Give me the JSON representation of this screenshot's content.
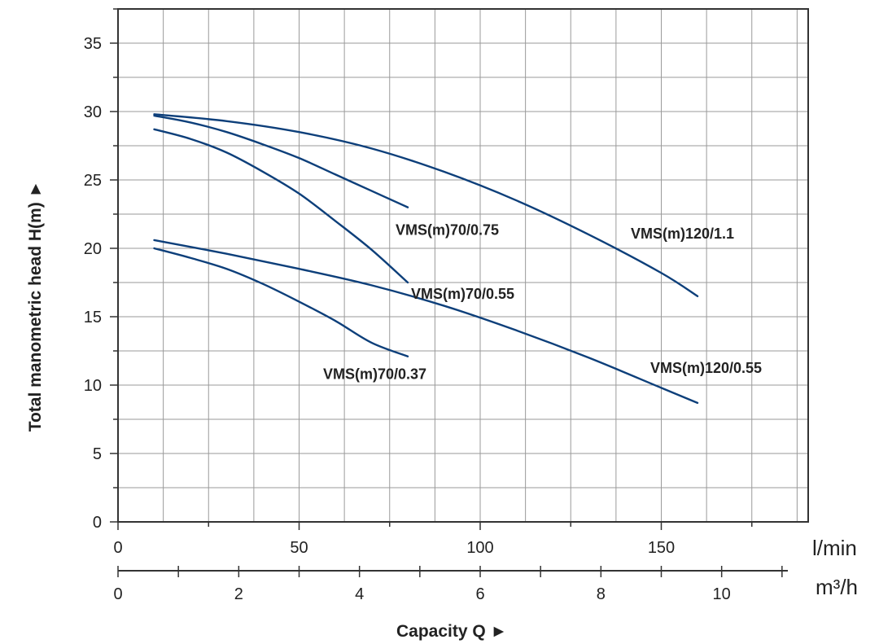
{
  "colors": {
    "curve": "#0d3f7a",
    "grid": "#9a9a9a",
    "axis": "#333333"
  },
  "chart_data": {
    "type": "line",
    "ylabel": "Total manometric head H(m) ►",
    "xlabel": "Capacity Q ►",
    "x_unit": "l/min",
    "x2_unit": "m³/h",
    "xlim": [
      0,
      190
    ],
    "ylim": [
      0,
      37
    ],
    "x_ticks": [
      0,
      50,
      100,
      150
    ],
    "x2_ticks": [
      0,
      2,
      4,
      6,
      8,
      10
    ],
    "y_ticks": [
      0,
      5,
      10,
      15,
      20,
      25,
      30,
      35
    ],
    "grid": true,
    "series": [
      {
        "name": "VMS(m)70/0.75",
        "x": [
          10,
          20,
          30,
          40,
          50,
          60,
          70,
          80
        ],
        "y": [
          29.7,
          29.2,
          28.5,
          27.6,
          26.6,
          25.4,
          24.2,
          23.0
        ]
      },
      {
        "name": "VMS(m)70/0.55",
        "x": [
          10,
          20,
          30,
          40,
          50,
          60,
          70,
          80
        ],
        "y": [
          28.7,
          28.0,
          27.0,
          25.6,
          24.0,
          22.0,
          19.9,
          17.5
        ]
      },
      {
        "name": "VMS(m)120/1.1",
        "x": [
          10,
          30,
          50,
          70,
          90,
          110,
          130,
          150,
          160
        ],
        "y": [
          29.8,
          29.3,
          28.5,
          27.3,
          25.6,
          23.5,
          21.0,
          18.2,
          16.5
        ]
      },
      {
        "name": "VMS(m)120/0.55",
        "x": [
          10,
          30,
          50,
          70,
          90,
          110,
          130,
          150,
          160
        ],
        "y": [
          20.6,
          19.6,
          18.5,
          17.3,
          15.8,
          14.0,
          12.0,
          9.8,
          8.7
        ]
      },
      {
        "name": "VMS(m)70/0.37",
        "x": [
          10,
          20,
          30,
          40,
          50,
          60,
          70,
          80
        ],
        "y": [
          20.0,
          19.3,
          18.5,
          17.4,
          16.1,
          14.7,
          13.1,
          12.1
        ]
      }
    ]
  }
}
